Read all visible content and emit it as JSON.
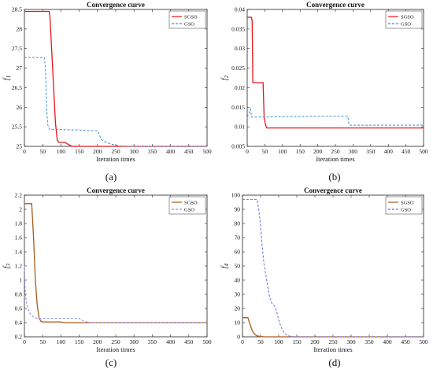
{
  "chart_data": [
    {
      "id": "a",
      "type": "line",
      "title": "Convergence curve",
      "xlabel": "Iteration times",
      "ylabel": "f1",
      "ylabel_base": "f",
      "ylabel_sub": "1",
      "caption": "(a)",
      "xlim": [
        0,
        500
      ],
      "ylim": [
        25,
        28.5
      ],
      "xticks": [
        "0",
        "50",
        "100",
        "150",
        "200",
        "250",
        "300",
        "350",
        "400",
        "450",
        "500"
      ],
      "yticks": [
        "25",
        "25.5",
        "26",
        "26.5",
        "27",
        "27.5",
        "28",
        "28.5"
      ],
      "legend_position": "top-right",
      "series": [
        {
          "name": "SGSO",
          "color": "#e8141b",
          "dash": "solid",
          "x": [
            0,
            68,
            70,
            75,
            80,
            85,
            90,
            95,
            100,
            110,
            115,
            120,
            130,
            150,
            200,
            500
          ],
          "y": [
            28.45,
            28.45,
            28.3,
            27.4,
            26.5,
            25.6,
            25.15,
            25.1,
            25.1,
            25.1,
            25.08,
            25.05,
            25.0,
            25.0,
            25.0,
            25.0
          ]
        },
        {
          "name": "GSO",
          "color": "#3a8fd6",
          "dash": "dash",
          "x": [
            0,
            55,
            58,
            60,
            62,
            64,
            66,
            68,
            70,
            80,
            100,
            130,
            150,
            180,
            200,
            205,
            210,
            220,
            240,
            260,
            280,
            500
          ],
          "y": [
            27.27,
            27.27,
            26.9,
            26.3,
            25.8,
            25.55,
            25.5,
            25.45,
            25.43,
            25.43,
            25.43,
            25.42,
            25.42,
            25.4,
            25.4,
            25.3,
            25.18,
            25.12,
            25.05,
            25.01,
            25.0,
            25.0
          ]
        }
      ]
    },
    {
      "id": "b",
      "type": "line",
      "title": "Convergence curve",
      "xlabel": "Iteration times",
      "ylabel": "f2",
      "ylabel_base": "f",
      "ylabel_sub": "2",
      "caption": "(b)",
      "xlim": [
        0,
        500
      ],
      "ylim": [
        0.005,
        0.04
      ],
      "xticks": [
        "0",
        "50",
        "100",
        "150",
        "200",
        "250",
        "300",
        "350",
        "400",
        "450",
        "500"
      ],
      "yticks": [
        "0.005",
        "0.01",
        "0.015",
        "0.02",
        "0.025",
        "0.03",
        "0.035",
        "0.04"
      ],
      "legend_position": "top-right",
      "series": [
        {
          "name": "SGSO",
          "color": "#e8141b",
          "dash": "solid",
          "x": [
            0,
            12,
            14,
            16,
            40,
            45,
            48,
            52,
            55,
            500
          ],
          "y": [
            0.038,
            0.038,
            0.037,
            0.0213,
            0.0213,
            0.0213,
            0.0125,
            0.0105,
            0.0097,
            0.0097
          ]
        },
        {
          "name": "GSO",
          "color": "#3a8fd6",
          "dash": "dash",
          "x": [
            0,
            10,
            12,
            14,
            16,
            18,
            20,
            25,
            50,
            100,
            200,
            285,
            288,
            290,
            500
          ],
          "y": [
            0.0125,
            0.0145,
            0.0125,
            0.0125,
            0.0125,
            0.0125,
            0.0125,
            0.0125,
            0.0125,
            0.0126,
            0.0127,
            0.0127,
            0.011,
            0.0104,
            0.0104
          ]
        }
      ]
    },
    {
      "id": "c",
      "type": "line",
      "title": "Convergence curve",
      "xlabel": "Iteration times",
      "ylabel": "f3",
      "ylabel_base": "f",
      "ylabel_sub": "3",
      "caption": "(c)",
      "xlim": [
        0,
        500
      ],
      "ylim": [
        0.2,
        2.2
      ],
      "xticks": [
        "0",
        "50",
        "100",
        "150",
        "200",
        "250",
        "300",
        "350",
        "400",
        "450",
        "500"
      ],
      "yticks": [
        "0.2",
        "0.4",
        "0.6",
        "0.8",
        "1",
        "1.2",
        "1.4",
        "1.6",
        "1.8",
        "2",
        "2.2"
      ],
      "legend_position": "top-right",
      "series": [
        {
          "name": "SGSO",
          "color": "#a65d1a",
          "dash": "solid",
          "x": [
            0,
            20,
            25,
            30,
            35,
            40,
            45,
            50,
            60,
            80,
            100,
            110,
            130,
            160,
            180,
            500
          ],
          "y": [
            2.08,
            2.08,
            1.6,
            1.0,
            0.65,
            0.47,
            0.42,
            0.41,
            0.41,
            0.41,
            0.41,
            0.4,
            0.4,
            0.4,
            0.4,
            0.4
          ]
        },
        {
          "name": "GSO",
          "color": "#8c8ff0",
          "dash": "dash",
          "x": [
            0,
            2,
            5,
            10,
            15,
            20,
            25,
            30,
            35,
            40,
            60,
            100,
            150,
            160,
            170,
            180,
            500
          ],
          "y": [
            1.2,
            0.85,
            0.7,
            0.6,
            0.53,
            0.5,
            0.48,
            0.47,
            0.46,
            0.46,
            0.46,
            0.46,
            0.46,
            0.43,
            0.41,
            0.4,
            0.4
          ]
        }
      ]
    },
    {
      "id": "d",
      "type": "line",
      "title": "Convergence curve",
      "xlabel": "Iteration times",
      "ylabel": "f4",
      "ylabel_base": "f",
      "ylabel_sub": "4",
      "caption": "(d)",
      "xlim": [
        0,
        500
      ],
      "ylim": [
        0,
        100
      ],
      "xticks": [
        "0",
        "50",
        "100",
        "150",
        "200",
        "250",
        "300",
        "350",
        "400",
        "450",
        "500"
      ],
      "yticks": [
        "0",
        "10",
        "20",
        "30",
        "40",
        "50",
        "60",
        "70",
        "80",
        "90",
        "100"
      ],
      "legend_position": "top-right",
      "series": [
        {
          "name": "SGSO",
          "color": "#a65d1a",
          "dash": "solid",
          "x": [
            0,
            15,
            18,
            22,
            26,
            30,
            35,
            40,
            50,
            60,
            500
          ],
          "y": [
            13.5,
            13.5,
            11,
            8,
            5,
            3,
            1.5,
            0.7,
            0.2,
            0,
            0
          ]
        },
        {
          "name": "GSO",
          "color": "#6470e0",
          "dash": "dash",
          "x": [
            0,
            40,
            45,
            50,
            55,
            60,
            65,
            70,
            75,
            80,
            85,
            90,
            95,
            100,
            105,
            110,
            115,
            120,
            130,
            140,
            150,
            500
          ],
          "y": [
            97,
            97,
            90,
            78,
            62,
            50,
            43,
            35,
            28,
            24,
            23,
            21,
            17,
            12,
            8,
            5,
            3,
            1.5,
            0.5,
            0.1,
            0,
            0
          ]
        }
      ]
    }
  ]
}
